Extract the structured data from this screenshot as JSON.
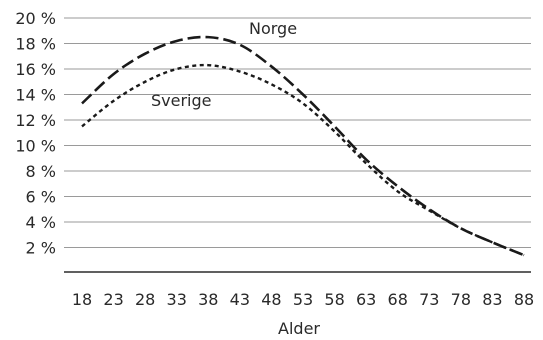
{
  "chart_data": {
    "type": "line",
    "xlabel": "Alder",
    "ylabel": "",
    "x": [
      18,
      23,
      28,
      33,
      38,
      43,
      48,
      53,
      58,
      63,
      68,
      73,
      78,
      83,
      88
    ],
    "x_tick_labels": [
      "18",
      "23",
      "28",
      "33",
      "38",
      "43",
      "48",
      "53",
      "58",
      "63",
      "68",
      "73",
      "78",
      "83",
      "88"
    ],
    "ylim": [
      0,
      20
    ],
    "y_ticks": [
      2,
      4,
      6,
      8,
      10,
      12,
      14,
      16,
      18,
      20
    ],
    "y_tick_labels": [
      "2 %",
      "4 %",
      "6 %",
      "8 %",
      "10 %",
      "12 %",
      "14 %",
      "16 %",
      "18 %",
      "20 %"
    ],
    "grid": true,
    "legend": "none",
    "series": [
      {
        "name": "Norge",
        "values": [
          13.3,
          15.6,
          17.2,
          18.2,
          18.5,
          17.9,
          16.2,
          14.0,
          11.5,
          8.9,
          6.8,
          5.0,
          3.5,
          2.4,
          1.4
        ],
        "color": "#1a1a1a",
        "dash": "long"
      },
      {
        "name": "Sverige",
        "values": [
          11.5,
          13.5,
          15.0,
          16.0,
          16.3,
          15.8,
          14.8,
          13.3,
          11.1,
          8.6,
          6.4,
          4.9,
          3.5,
          2.4,
          1.4
        ],
        "color": "#1a1a1a",
        "dash": "short"
      }
    ]
  }
}
